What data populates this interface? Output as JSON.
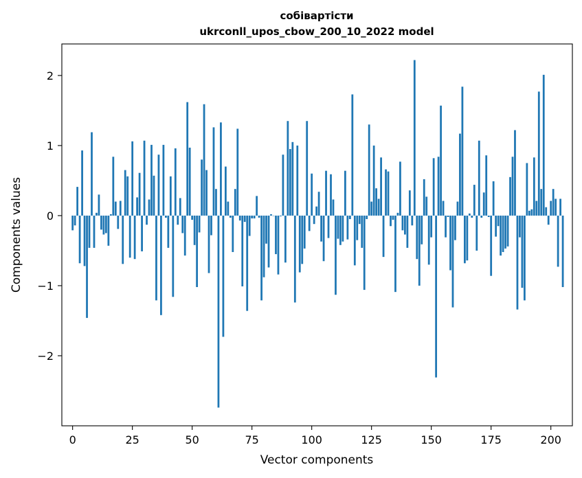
{
  "chart_data": {
    "type": "bar",
    "title": "собівартісти",
    "subtitle": "ukrconll_upos_cbow_200_10_2022 model",
    "xlabel": "Vector components",
    "ylabel": "Components values",
    "xlim": [
      -4.5,
      209
    ],
    "ylim": [
      -3.0,
      2.45
    ],
    "xticks": [
      0,
      25,
      50,
      75,
      100,
      125,
      150,
      175,
      200
    ],
    "yticks": [
      -2,
      -1,
      0,
      1,
      2
    ],
    "xtick_labels": [
      "0",
      "25",
      "50",
      "75",
      "100",
      "125",
      "150",
      "175",
      "200"
    ],
    "ytick_labels": [
      "−2",
      "−1",
      "0",
      "1",
      "2"
    ],
    "color": "#1f77b4",
    "values": [
      -0.21,
      -0.14,
      0.41,
      -0.68,
      0.93,
      -0.72,
      -1.46,
      -0.46,
      1.19,
      -0.46,
      0.04,
      0.3,
      -0.2,
      -0.27,
      -0.25,
      -0.43,
      0.02,
      0.84,
      0.2,
      -0.19,
      0.21,
      -0.69,
      0.65,
      0.56,
      -0.6,
      1.06,
      -0.62,
      0.26,
      0.61,
      -0.51,
      1.07,
      -0.13,
      0.23,
      1.01,
      0.57,
      -1.21,
      0.87,
      -1.42,
      1.01,
      -0.03,
      -0.46,
      0.56,
      -1.16,
      0.96,
      -0.13,
      0.25,
      -0.25,
      -0.57,
      1.62,
      0.97,
      -0.06,
      -0.42,
      -1.02,
      -0.24,
      0.8,
      1.59,
      0.65,
      -0.82,
      -0.28,
      1.26,
      0.38,
      -2.74,
      1.33,
      -1.73,
      0.7,
      0.2,
      -0.03,
      -0.52,
      0.38,
      1.24,
      -0.07,
      -1.01,
      -0.09,
      -1.36,
      -0.29,
      -0.04,
      -0.04,
      0.28,
      -0.03,
      -1.21,
      -0.88,
      -0.4,
      -0.74,
      0.02,
      0.0,
      -0.55,
      -0.84,
      -0.01,
      0.87,
      -0.67,
      1.35,
      0.95,
      1.05,
      -1.24,
      1.0,
      -0.81,
      -0.69,
      -0.47,
      1.35,
      -0.22,
      0.6,
      -0.12,
      0.13,
      0.34,
      -0.37,
      -0.65,
      0.64,
      -0.32,
      0.59,
      0.23,
      -1.13,
      -0.33,
      -0.42,
      -0.37,
      0.64,
      -0.34,
      -0.05,
      1.73,
      -0.71,
      -0.35,
      -0.12,
      -0.46,
      -1.06,
      -0.05,
      1.3,
      0.2,
      1.0,
      0.39,
      0.24,
      0.83,
      -0.59,
      0.66,
      0.63,
      -0.15,
      -0.06,
      -1.09,
      0.04,
      0.77,
      -0.21,
      -0.27,
      -0.46,
      0.36,
      -0.14,
      2.22,
      -0.62,
      -1.0,
      -0.41,
      0.52,
      0.27,
      -0.7,
      -0.31,
      0.82,
      -2.31,
      0.84,
      1.57,
      0.21,
      -0.31,
      -0.02,
      -0.78,
      -1.31,
      -0.35,
      0.2,
      1.17,
      1.84,
      -0.68,
      -0.64,
      0.03,
      -0.03,
      0.44,
      -0.5,
      1.07,
      -0.03,
      0.33,
      0.86,
      -0.02,
      -0.86,
      0.49,
      -0.3,
      -0.15,
      -0.57,
      -0.52,
      -0.47,
      -0.44,
      0.55,
      0.84,
      1.22,
      -1.34,
      -0.31,
      -1.03,
      -1.21,
      0.75,
      0.07,
      0.09,
      0.83,
      0.21,
      1.77,
      0.38,
      2.01,
      0.12,
      -0.13,
      0.21,
      0.38,
      0.24,
      -0.73,
      0.24,
      -1.02
    ]
  }
}
